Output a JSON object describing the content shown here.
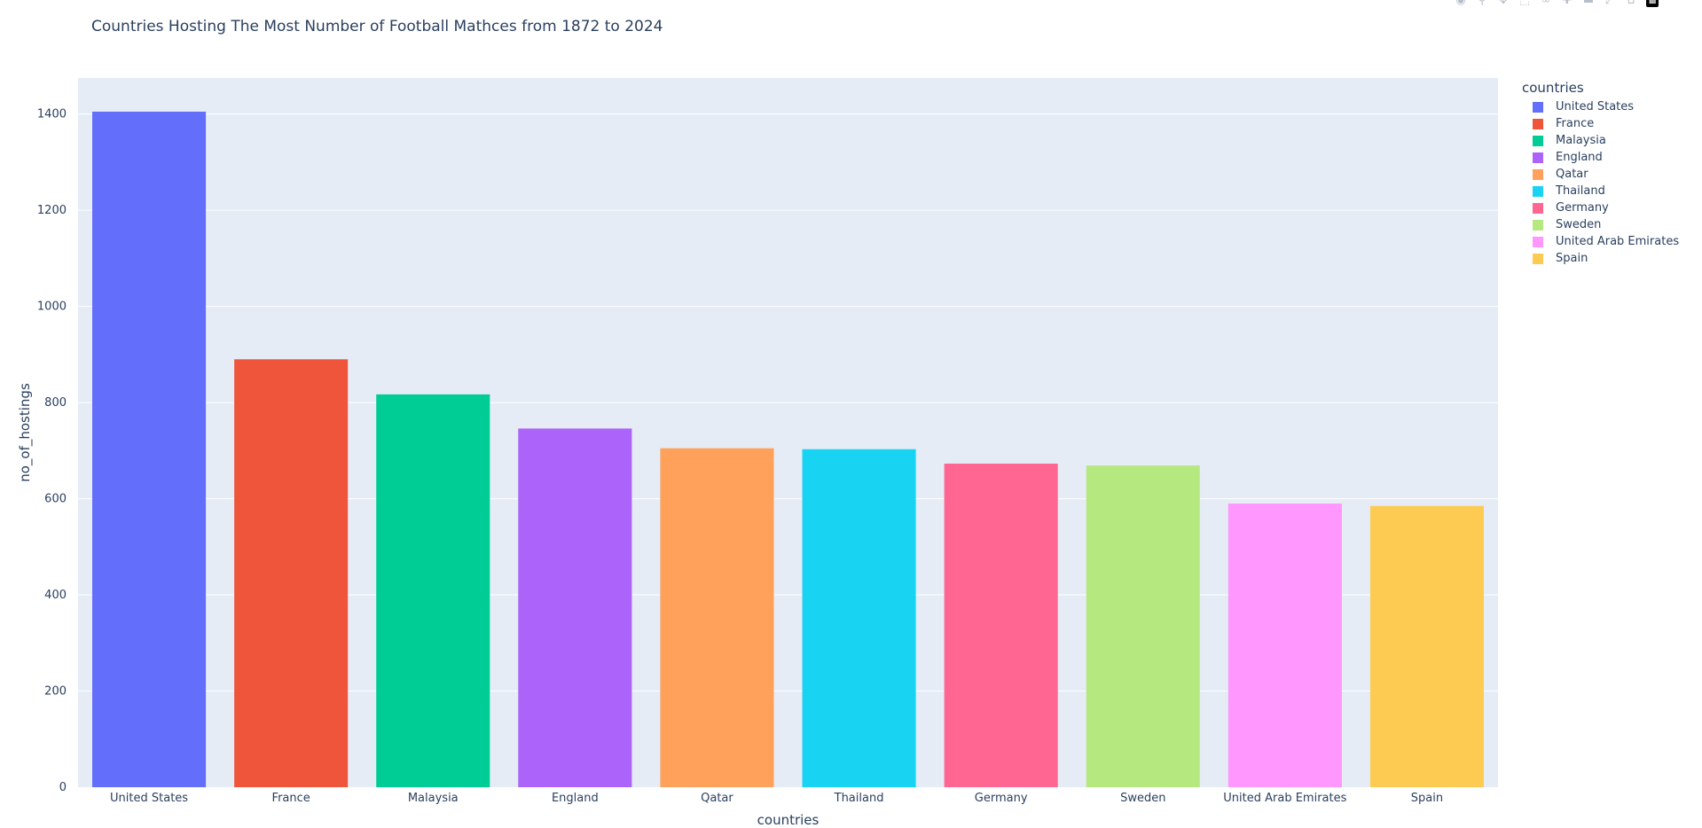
{
  "toolbar": {
    "icons": [
      "camera-icon",
      "zoom-icon",
      "pan-icon",
      "box-select-icon",
      "lasso-icon",
      "zoom-in-icon",
      "zoom-out-icon",
      "autoscale-icon",
      "reset-axes-icon",
      "plotly-logo-icon"
    ]
  },
  "chart_data": {
    "type": "bar",
    "title": "Countries Hosting The Most Number of Football Mathces from 1872 to 2024",
    "xlabel": "countries",
    "ylabel": "no_of_hostings",
    "categories": [
      "United States",
      "France",
      "Malaysia",
      "England",
      "Qatar",
      "Thailand",
      "Germany",
      "Sweden",
      "United Arab Emirates",
      "Spain"
    ],
    "values": [
      1405,
      890,
      817,
      746,
      705,
      703,
      673,
      669,
      590,
      585
    ],
    "colors": [
      "#636efa",
      "#ef553b",
      "#00cc96",
      "#ab63fa",
      "#ffa15a",
      "#19d3f3",
      "#ff6692",
      "#b6e880",
      "#ff97ff",
      "#fecb52"
    ],
    "ylim": [
      0,
      1475
    ],
    "yticks": [
      0,
      200,
      400,
      600,
      800,
      1000,
      1200,
      1400
    ],
    "grid": true,
    "plot_bg": "#e5ecf6",
    "legend": {
      "title": "countries",
      "placement": "top-right outside"
    }
  }
}
